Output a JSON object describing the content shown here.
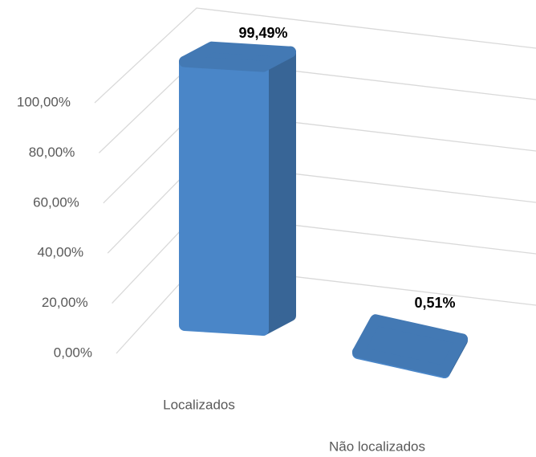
{
  "chart_data": {
    "type": "bar3d",
    "categories": [
      "Localizados",
      "Não localizados"
    ],
    "values": [
      99.49,
      0.51
    ],
    "value_labels": [
      "99,49%",
      "0,51%"
    ],
    "color": "#4a86c8",
    "ylim": [
      0,
      100
    ],
    "yticks": [
      {
        "value": 0,
        "label": "0,00%"
      },
      {
        "value": 20,
        "label": "20,00%"
      },
      {
        "value": 40,
        "label": "40,00%"
      },
      {
        "value": 60,
        "label": "60,00%"
      },
      {
        "value": 80,
        "label": "80,00%"
      },
      {
        "value": 100,
        "label": "100,00%"
      }
    ],
    "grid": true
  }
}
